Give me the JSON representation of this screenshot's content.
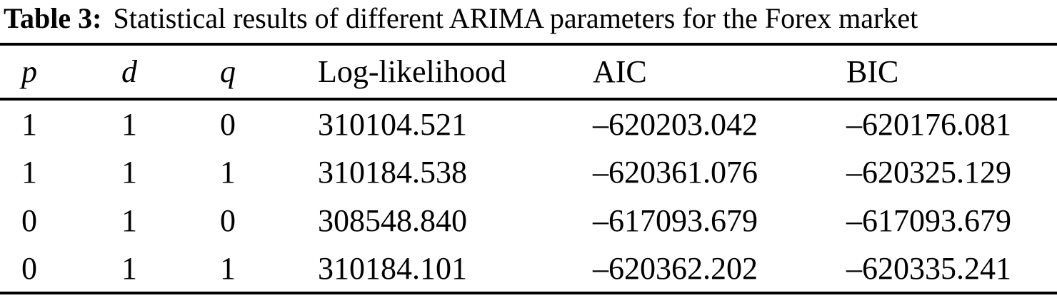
{
  "page": {
    "background_color": "#ffffff",
    "text_color": "#000000",
    "rule_color": "#000000"
  },
  "title": {
    "label": "Table 3:",
    "text": "Statistical results of different ARIMA parameters for the Forex market"
  },
  "table": {
    "columns": [
      "p",
      "d",
      "q",
      "Log-likelihood",
      "AIC",
      "BIC"
    ],
    "rows": [
      {
        "p": "1",
        "d": "1",
        "q": "0",
        "log_likelihood": "310104.521",
        "aic": "–620203.042",
        "bic": "–620176.081"
      },
      {
        "p": "1",
        "d": "1",
        "q": "1",
        "log_likelihood": "310184.538",
        "aic": "–620361.076",
        "bic": "–620325.129"
      },
      {
        "p": "0",
        "d": "1",
        "q": "0",
        "log_likelihood": "308548.840",
        "aic": "–617093.679",
        "bic": "–617093.679"
      },
      {
        "p": "0",
        "d": "1",
        "q": "1",
        "log_likelihood": "310184.101",
        "aic": "–620362.202",
        "bic": "–620335.241"
      }
    ]
  },
  "chart_data": {
    "type": "table",
    "title": "Table 3: Statistical results of different ARIMA parameters for the Forex market",
    "columns": [
      "p",
      "d",
      "q",
      "Log-likelihood",
      "AIC",
      "BIC"
    ],
    "rows": [
      [
        "1",
        "1",
        "0",
        "310104.521",
        "–620203.042",
        "–620176.081"
      ],
      [
        "1",
        "1",
        "1",
        "310184.538",
        "–620361.076",
        "–620325.129"
      ],
      [
        "0",
        "1",
        "0",
        "308548.840",
        "–617093.679",
        "–617093.679"
      ],
      [
        "0",
        "1",
        "1",
        "310184.101",
        "–620362.202",
        "–620335.241"
      ]
    ]
  }
}
